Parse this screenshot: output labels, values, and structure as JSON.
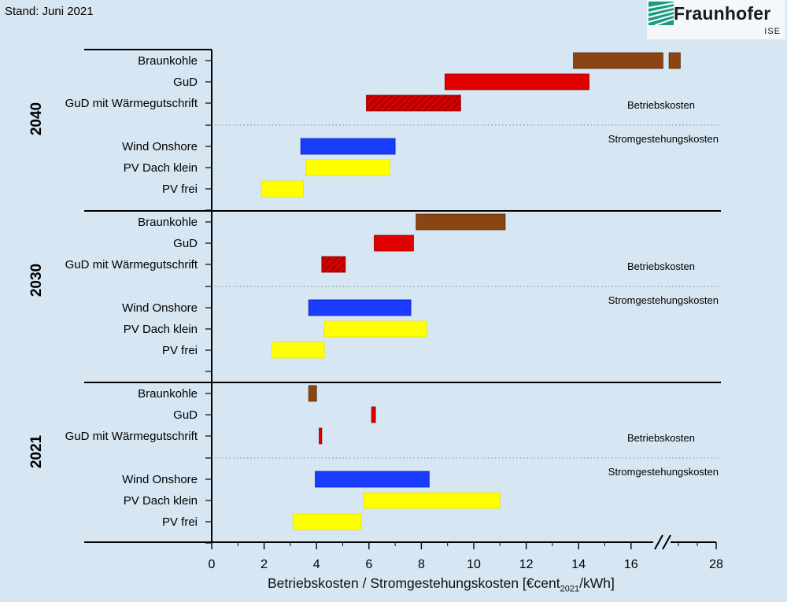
{
  "header": {
    "stand": "Stand: Juni 2021",
    "logo_name": "Fraunhofer",
    "logo_sub": "ISE"
  },
  "chart_data": {
    "type": "range-bar",
    "xlabel_main": "Betriebskosten / Stromgestehungskosten [€cent",
    "xlabel_sub": "2021",
    "xlabel_unit": "/kWh]",
    "x_ticks": [
      0,
      2,
      4,
      6,
      8,
      10,
      12,
      14,
      16,
      28
    ],
    "x_axis_break_between": [
      16,
      28
    ],
    "section_labels": {
      "operating": "Betriebskosten",
      "generation": "Stromgestehungskosten"
    },
    "colors": {
      "braunkohle": "#8b4513",
      "gud": "#e00000",
      "gud_waerme": "hatch",
      "wind": "#1a3cff",
      "pv_dach": "#ffff00",
      "pv_frei": "#ffff00"
    },
    "groups": [
      {
        "year": "2040",
        "rows": [
          {
            "label": "Braunkohle",
            "color": "braunkohle",
            "ranges": [
              [
                13.8,
                17.0
              ],
              [
                17.35,
                18.0
              ]
            ]
          },
          {
            "label": "GuD",
            "color": "gud",
            "ranges": [
              [
                8.9,
                14.4
              ]
            ]
          },
          {
            "label": "GuD mit Wärmegutschrift",
            "color": "gud_waerme",
            "ranges": [
              [
                5.9,
                9.5
              ]
            ]
          },
          {
            "label": "Wind Onshore",
            "color": "wind",
            "ranges": [
              [
                3.4,
                7.0
              ]
            ]
          },
          {
            "label": "PV Dach klein",
            "color": "pv_dach",
            "ranges": [
              [
                3.6,
                6.8
              ]
            ]
          },
          {
            "label": "PV frei",
            "color": "pv_frei",
            "ranges": [
              [
                1.9,
                3.5
              ]
            ]
          }
        ]
      },
      {
        "year": "2030",
        "rows": [
          {
            "label": "Braunkohle",
            "color": "braunkohle",
            "ranges": [
              [
                7.8,
                11.2
              ]
            ]
          },
          {
            "label": "GuD",
            "color": "gud",
            "ranges": [
              [
                6.2,
                7.7
              ]
            ]
          },
          {
            "label": "GuD mit Wärmegutschrift",
            "color": "gud_waerme",
            "ranges": [
              [
                4.2,
                5.1
              ]
            ]
          },
          {
            "label": "Wind Onshore",
            "color": "wind",
            "ranges": [
              [
                3.7,
                7.6
              ]
            ]
          },
          {
            "label": "PV Dach klein",
            "color": "pv_dach",
            "ranges": [
              [
                4.3,
                8.2
              ]
            ]
          },
          {
            "label": "PV frei",
            "color": "pv_frei",
            "ranges": [
              [
                2.3,
                4.3
              ]
            ]
          }
        ]
      },
      {
        "year": "2021",
        "rows": [
          {
            "label": "Braunkohle",
            "color": "braunkohle",
            "ranges": [
              [
                3.7,
                4.0
              ]
            ]
          },
          {
            "label": "GuD",
            "color": "gud",
            "ranges": [
              [
                6.1,
                6.25
              ]
            ]
          },
          {
            "label": "GuD mit Wärmegutschrift",
            "color": "gud",
            "ranges": [
              [
                4.1,
                4.2
              ]
            ]
          },
          {
            "label": "Wind Onshore",
            "color": "wind",
            "ranges": [
              [
                3.95,
                8.3
              ]
            ]
          },
          {
            "label": "PV Dach klein",
            "color": "pv_dach",
            "ranges": [
              [
                5.8,
                11.0
              ]
            ]
          },
          {
            "label": "PV frei",
            "color": "pv_frei",
            "ranges": [
              [
                3.1,
                5.7
              ]
            ]
          }
        ]
      }
    ]
  }
}
